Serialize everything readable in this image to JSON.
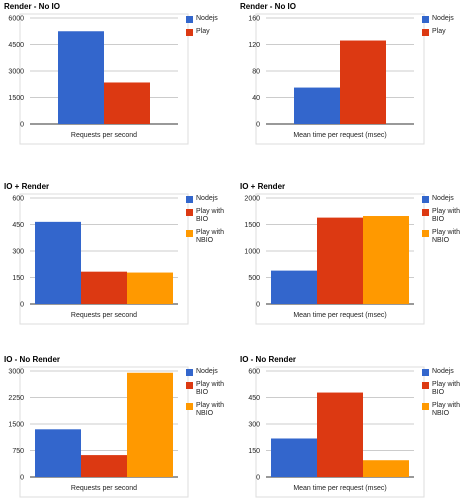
{
  "colors": {
    "Nodejs": "#3366cc",
    "Play": "#dc3912",
    "Play with BIO": "#dc3912",
    "Play with NBIO": "#ff9900",
    "grid": "#cccccc",
    "axis": "#333333"
  },
  "chart_data": [
    {
      "type": "bar",
      "title": "Render - No IO",
      "xlabel": "Requests per second",
      "ylabel": "",
      "ylim": [
        0,
        6000
      ],
      "yticks": [
        "0",
        "1500",
        "3000",
        "4500",
        "6000"
      ],
      "grid": true,
      "legend": "right",
      "series": [
        {
          "name": "Nodejs",
          "values": [
            5250
          ]
        },
        {
          "name": "Play",
          "values": [
            2350
          ]
        }
      ]
    },
    {
      "type": "bar",
      "title": "Render - No IO",
      "xlabel": "Mean time per request (msec)",
      "ylabel": "",
      "ylim": [
        0,
        160
      ],
      "yticks": [
        "0",
        "40",
        "80",
        "120",
        "160"
      ],
      "grid": true,
      "legend": "right",
      "series": [
        {
          "name": "Nodejs",
          "values": [
            55
          ]
        },
        {
          "name": "Play",
          "values": [
            126
          ]
        }
      ]
    },
    {
      "type": "bar",
      "title": "IO + Render",
      "xlabel": "Requests per second",
      "ylabel": "",
      "ylim": [
        0,
        600
      ],
      "yticks": [
        "0",
        "150",
        "300",
        "450",
        "600"
      ],
      "grid": true,
      "legend": "right",
      "series": [
        {
          "name": "Nodejs",
          "values": [
            465
          ]
        },
        {
          "name": "Play with BIO",
          "values": [
            183
          ]
        },
        {
          "name": "Play with NBIO",
          "values": [
            178
          ]
        }
      ]
    },
    {
      "type": "bar",
      "title": "IO + Render",
      "xlabel": "Mean time per request (msec)",
      "ylabel": "",
      "ylim": [
        0,
        2000
      ],
      "yticks": [
        "0",
        "500",
        "1000",
        "1500",
        "2000"
      ],
      "grid": true,
      "legend": "right",
      "series": [
        {
          "name": "Nodejs",
          "values": [
            630
          ]
        },
        {
          "name": "Play with BIO",
          "values": [
            1630
          ]
        },
        {
          "name": "Play with NBIO",
          "values": [
            1660
          ]
        }
      ]
    },
    {
      "type": "bar",
      "title": "IO - No Render",
      "xlabel": "Requests per second",
      "ylabel": "",
      "ylim": [
        0,
        3000
      ],
      "yticks": [
        "0",
        "750",
        "1500",
        "2250",
        "3000"
      ],
      "grid": true,
      "legend": "right",
      "series": [
        {
          "name": "Nodejs",
          "values": [
            1350
          ]
        },
        {
          "name": "Play with BIO",
          "values": [
            620
          ]
        },
        {
          "name": "Play with NBIO",
          "values": [
            2950
          ]
        }
      ]
    },
    {
      "type": "bar",
      "title": "IO - No Render",
      "xlabel": "Mean time per request (msec)",
      "ylabel": "",
      "ylim": [
        0,
        600
      ],
      "yticks": [
        "0",
        "150",
        "300",
        "450",
        "600"
      ],
      "grid": true,
      "legend": "right",
      "series": [
        {
          "name": "Nodejs",
          "values": [
            218
          ]
        },
        {
          "name": "Play with BIO",
          "values": [
            478
          ]
        },
        {
          "name": "Play with NBIO",
          "values": [
            95
          ]
        }
      ]
    }
  ]
}
